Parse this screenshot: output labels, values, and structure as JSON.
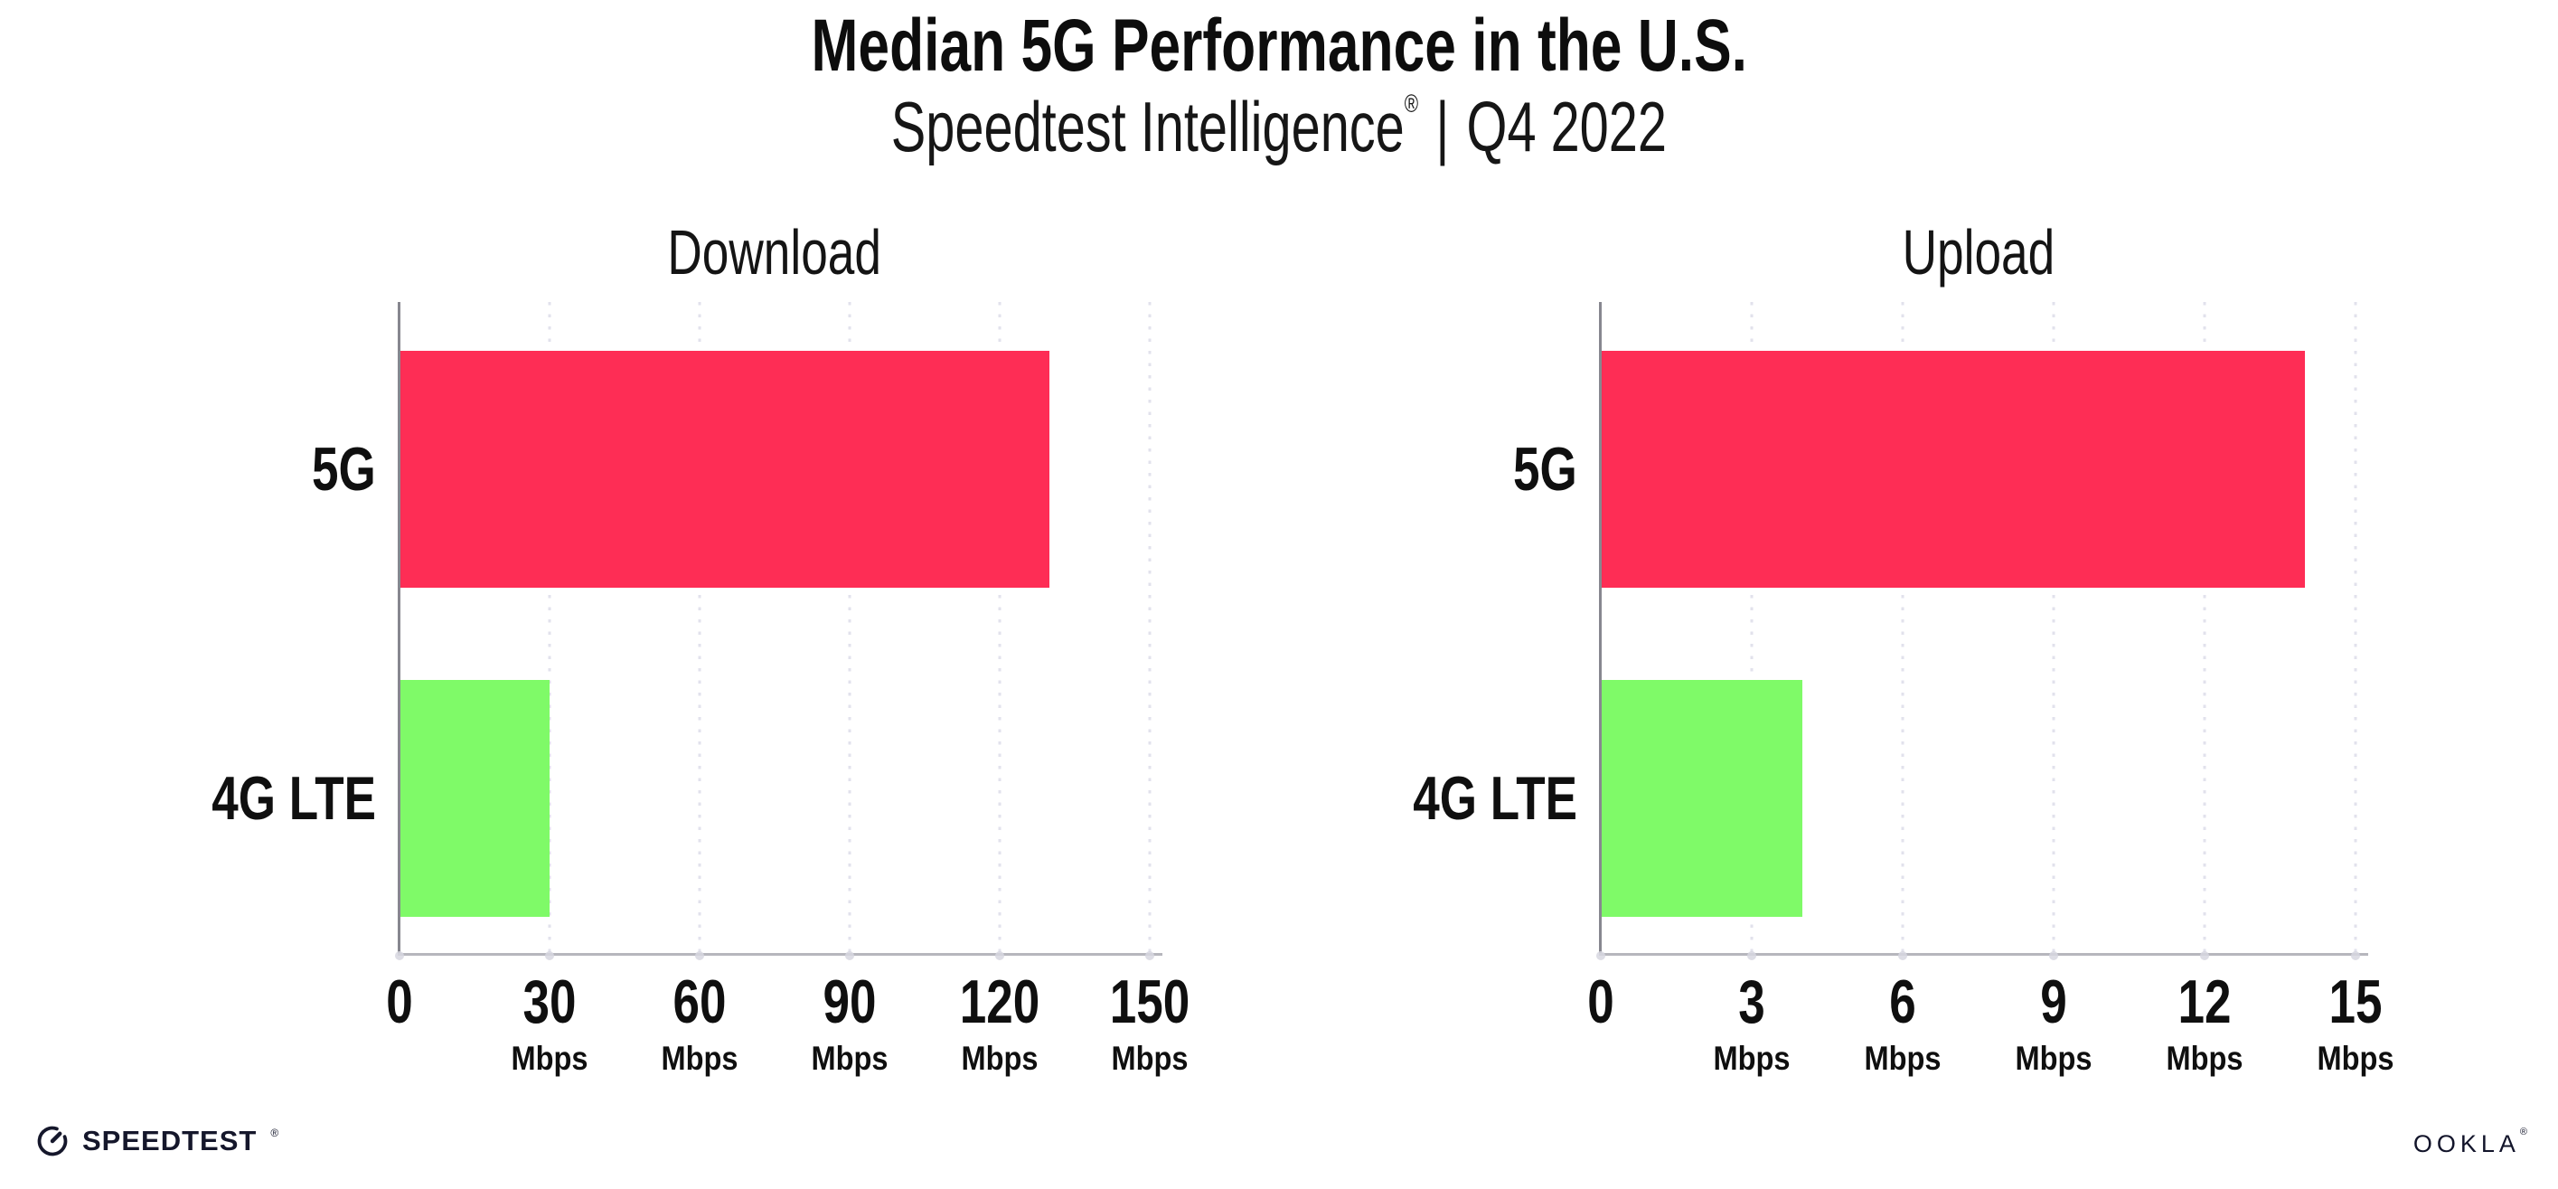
{
  "header": {
    "title": "Median 5G Performance in the U.S.",
    "subtitle_brand": "Speedtest Intelligence",
    "subtitle_reg": "®",
    "subtitle_separator": "|",
    "subtitle_period": "Q4 2022"
  },
  "chart_data": [
    {
      "type": "bar",
      "orientation": "horizontal",
      "title": "Download",
      "categories": [
        "5G",
        "4G LTE"
      ],
      "values": [
        130,
        30
      ],
      "unit": "Mbps",
      "xlabel": "",
      "ylabel": "",
      "xlim": [
        0,
        150
      ],
      "xticks": [
        0,
        30,
        60,
        90,
        120,
        150
      ],
      "grid": "dotted-vertical",
      "legend": "none",
      "bar_colors": [
        "#FE2D55",
        "#7FFA68"
      ]
    },
    {
      "type": "bar",
      "orientation": "horizontal",
      "title": "Upload",
      "categories": [
        "5G",
        "4G LTE"
      ],
      "values": [
        14,
        4
      ],
      "unit": "Mbps",
      "xlabel": "",
      "ylabel": "",
      "xlim": [
        0,
        15
      ],
      "xticks": [
        0,
        3,
        6,
        9,
        12,
        15
      ],
      "grid": "dotted-vertical",
      "legend": "none",
      "bar_colors": [
        "#FE2D55",
        "#7FFA68"
      ]
    }
  ],
  "footer": {
    "speedtest_text": "SPEEDTEST",
    "speedtest_reg": "®",
    "ookla_text": "OOKLA",
    "ookla_reg": "®"
  },
  "colors": {
    "bar_5g": "#FE2D55",
    "bar_4g_lte": "#7FFA68",
    "text": "#111111",
    "gridline": "#e2e2ec",
    "axis_left": "#87878f",
    "axis_bottom": "#b6b6bd"
  }
}
